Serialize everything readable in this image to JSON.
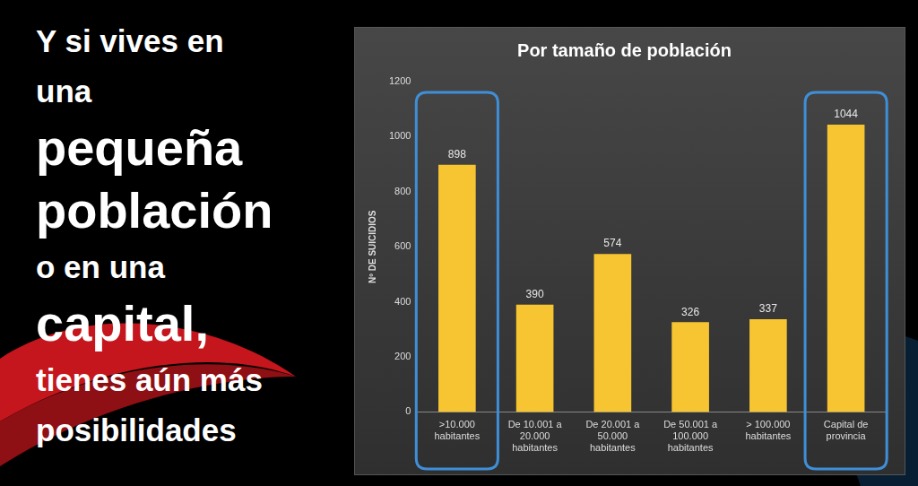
{
  "slide_text": [
    "Y si vives en",
    "una",
    "pequeña",
    "población",
    "o en una",
    "capital,",
    "tienes aún más",
    "posibilidades"
  ],
  "chart_data": {
    "type": "bar",
    "title": "Por tamaño de población",
    "ylabel": "Nº DE SUICIDIOS",
    "categories": [
      ">10.000 habitantes",
      "De 10.001 a 20.000 habitantes",
      "De 20.001 a 50.000 habitantes",
      "De 50.001 a 100.000 habitantes",
      "> 100.000 habitantes",
      "Capital de provincia"
    ],
    "values": [
      898,
      390,
      574,
      326,
      337,
      1044
    ],
    "color": "#f7c531",
    "ylim": [
      0,
      1200
    ],
    "yticks": [
      0,
      200,
      400,
      600,
      800,
      1000,
      1200
    ],
    "grid": false,
    "data_labels": true
  }
}
